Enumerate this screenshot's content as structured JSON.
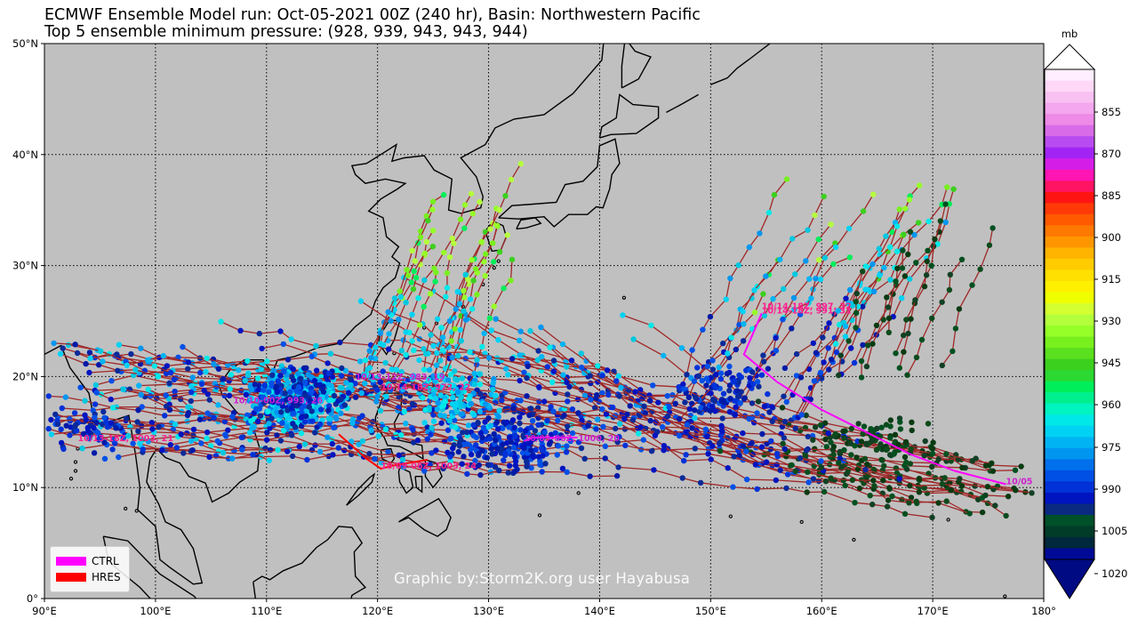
{
  "title": {
    "line1": "ECMWF Ensemble Model run: Oct-05-2021 00Z (240 hr), Basin: Northwestern Pacific",
    "line2": "Top 5 ensemble minimum pressure: (928, 939, 943, 943, 944)"
  },
  "map": {
    "lon_range": [
      90,
      180
    ],
    "lat_range": [
      0,
      50
    ],
    "ocean_color": "#c0c0c0",
    "land_outline_color": "#000000",
    "grid": "dotted",
    "x_ticks": [
      "90°E",
      "100°E",
      "110°E",
      "120°E",
      "130°E",
      "140°E",
      "150°E",
      "160°E",
      "170°E",
      "180°"
    ],
    "y_ticks": [
      "0°",
      "10°N",
      "20°N",
      "30°N",
      "40°N",
      "50°N"
    ]
  },
  "colorbar": {
    "unit": "mb",
    "labels": [
      "855",
      "870",
      "885",
      "900",
      "915",
      "930",
      "945",
      "960",
      "975",
      "990",
      "1005",
      "1020"
    ],
    "colors": [
      "#ffeeff",
      "#ffd8f8",
      "#f9c0f2",
      "#f4a6ee",
      "#ee8ae8",
      "#d86ce8",
      "#b94cf0",
      "#a224f4",
      "#d41ee8",
      "#ff14b4",
      "#ff1464",
      "#ff1414",
      "#ff3a08",
      "#ff5a00",
      "#ff7800",
      "#ff9600",
      "#ffb400",
      "#ffcc00",
      "#ffe000",
      "#fff000",
      "#f0ff00",
      "#d4ff30",
      "#b4ff3c",
      "#96ff28",
      "#78f01e",
      "#5ae01e",
      "#3cd01e",
      "#2cd832",
      "#00ee5a",
      "#00f090",
      "#00f4c0",
      "#00e8e8",
      "#00d2f4",
      "#00b4f4",
      "#0096f0",
      "#0070ec",
      "#0050e6",
      "#0032d8",
      "#0014c0",
      "#0a2a82",
      "#00502a",
      "#003c28",
      "#00283c",
      "#000a96"
    ],
    "top_color": "#ffffff",
    "bottom_color": "#000a82"
  },
  "legend": {
    "items": [
      {
        "label": "CTRL",
        "color": "#ff00ff"
      },
      {
        "label": "HRES",
        "color": "#ff0000"
      }
    ]
  },
  "annotations": [
    {
      "text": "10/14-18Z, 997, 32",
      "lon": 154.6,
      "lat": 26.1,
      "color": "#ff2090"
    },
    {
      "text": "10/14-18Z, 991, 31",
      "lon": 154.6,
      "lat": 25.7,
      "color": "#ff2090"
    },
    {
      "text": "10/13-12Z, 983, 19",
      "lon": 118,
      "lat": 19.7,
      "color": "#d020d0"
    },
    {
      "text": "10/14-18Z, 972, 22",
      "lon": 120.3,
      "lat": 18.8,
      "color": "#ff2090"
    },
    {
      "text": "10/10-00Z, 993, 26",
      "lon": 107,
      "lat": 17.6,
      "color": "#d020d0"
    },
    {
      "text": "10/13-18Z, 1003, 21",
      "lon": 93,
      "lat": 14.2,
      "color": "#ff2090"
    },
    {
      "text": "10/09-06Z, 1000, 20",
      "lon": 133.2,
      "lat": 14.2,
      "color": "#d020d0"
    },
    {
      "text": "10/09-06Z, 1003, 24",
      "lon": 120.3,
      "lat": 11.7,
      "color": "#ff2090"
    },
    {
      "text": "10/05",
      "lon": 176.6,
      "lat": 10.3,
      "color": "#d020d0"
    }
  ],
  "credit": "Graphic by:Storm2K.org user Hayabusa"
}
